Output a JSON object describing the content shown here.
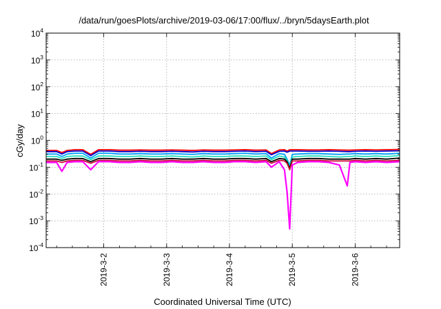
{
  "chart_data": {
    "type": "line",
    "title": "/data/run/goesPlots/archive/2019-03-06/17:00/flux/../bryn/5daysEarth.plot",
    "xlabel": "Coordinated Universal Time (UTC)",
    "ylabel": "cGy/day",
    "yscale": "log",
    "ylim": [
      0.0001,
      10000
    ],
    "yticks": [
      {
        "base": "10",
        "exp": "4",
        "value": 10000
      },
      {
        "base": "10",
        "exp": "3",
        "value": 1000
      },
      {
        "base": "10",
        "exp": "2",
        "value": 100
      },
      {
        "base": "10",
        "exp": "1",
        "value": 10
      },
      {
        "base": "10",
        "exp": "0",
        "value": 1
      },
      {
        "base": "10",
        "exp": "-1",
        "value": 0.1
      },
      {
        "base": "10",
        "exp": "-2",
        "value": 0.01
      },
      {
        "base": "10",
        "exp": "-3",
        "value": 0.001
      },
      {
        "base": "10",
        "exp": "-4",
        "value": 0.0001
      }
    ],
    "xlim": [
      "2019-03-01T02:00",
      "2019-03-06T17:00"
    ],
    "xticks": [
      "2019-3-2",
      "2019-3-3",
      "2019-3-4",
      "2019-3-5",
      "2019-3-6"
    ],
    "grid": true,
    "x": [
      "2019-03-01T02:00",
      "2019-03-01T06:00",
      "2019-03-01T08:00",
      "2019-03-01T10:00",
      "2019-03-01T13:00",
      "2019-03-01T16:00",
      "2019-03-01T19:00",
      "2019-03-01T22:00",
      "2019-03-02T02:00",
      "2019-03-02T06:00",
      "2019-03-02T10:00",
      "2019-03-02T14:00",
      "2019-03-02T18:00",
      "2019-03-02T22:00",
      "2019-03-03T02:00",
      "2019-03-03T06:00",
      "2019-03-03T10:00",
      "2019-03-03T14:00",
      "2019-03-03T18:00",
      "2019-03-03T22:00",
      "2019-03-04T02:00",
      "2019-03-04T06:00",
      "2019-03-04T10:00",
      "2019-03-04T14:00",
      "2019-03-04T16:00",
      "2019-03-04T19:00",
      "2019-03-04T21:00",
      "2019-03-04T22:00",
      "2019-03-04T23:00",
      "2019-03-05T00:00",
      "2019-03-05T02:00",
      "2019-03-05T06:00",
      "2019-03-05T10:00",
      "2019-03-05T14:00",
      "2019-03-05T18:00",
      "2019-03-05T21:00",
      "2019-03-05T22:00",
      "2019-03-06T00:00",
      "2019-03-06T04:00",
      "2019-03-06T08:00",
      "2019-03-06T12:00",
      "2019-03-06T17:00"
    ],
    "series": [
      {
        "color": "#ff0000",
        "values": [
          0.42,
          0.42,
          0.35,
          0.42,
          0.45,
          0.45,
          0.3,
          0.45,
          0.45,
          0.43,
          0.43,
          0.44,
          0.43,
          0.43,
          0.44,
          0.43,
          0.42,
          0.44,
          0.43,
          0.43,
          0.44,
          0.45,
          0.43,
          0.44,
          0.32,
          0.44,
          0.45,
          0.4,
          0.45,
          0.45,
          0.45,
          0.44,
          0.44,
          0.45,
          0.44,
          0.43,
          0.43,
          0.44,
          0.45,
          0.44,
          0.45,
          0.46
        ]
      },
      {
        "color": "#0000cc",
        "values": [
          0.38,
          0.38,
          0.31,
          0.38,
          0.4,
          0.4,
          0.27,
          0.4,
          0.4,
          0.38,
          0.38,
          0.39,
          0.38,
          0.38,
          0.39,
          0.38,
          0.37,
          0.39,
          0.38,
          0.38,
          0.39,
          0.4,
          0.38,
          0.39,
          0.29,
          0.39,
          0.4,
          0.36,
          0.4,
          0.4,
          0.4,
          0.39,
          0.39,
          0.4,
          0.39,
          0.38,
          0.38,
          0.39,
          0.4,
          0.39,
          0.4,
          0.41
        ]
      },
      {
        "color": "#00a0ff",
        "values": [
          0.31,
          0.31,
          0.25,
          0.31,
          0.33,
          0.33,
          0.22,
          0.33,
          0.33,
          0.31,
          0.31,
          0.32,
          0.31,
          0.31,
          0.32,
          0.31,
          0.3,
          0.32,
          0.31,
          0.31,
          0.32,
          0.33,
          0.31,
          0.32,
          0.22,
          0.32,
          0.3,
          0.2,
          0.12,
          0.3,
          0.31,
          0.32,
          0.32,
          0.31,
          0.3,
          0.31,
          0.31,
          0.32,
          0.31,
          0.32,
          0.31,
          0.33
        ]
      },
      {
        "color": "#22ddbb",
        "values": [
          0.25,
          0.25,
          0.21,
          0.25,
          0.26,
          0.26,
          0.19,
          0.26,
          0.26,
          0.25,
          0.25,
          0.26,
          0.25,
          0.25,
          0.26,
          0.25,
          0.24,
          0.26,
          0.25,
          0.25,
          0.26,
          0.26,
          0.25,
          0.26,
          0.19,
          0.26,
          0.24,
          0.18,
          0.1,
          0.24,
          0.25,
          0.26,
          0.26,
          0.25,
          0.24,
          0.25,
          0.25,
          0.26,
          0.25,
          0.26,
          0.25,
          0.27
        ]
      },
      {
        "color": "#000000",
        "values": [
          0.2,
          0.2,
          0.18,
          0.2,
          0.21,
          0.21,
          0.16,
          0.21,
          0.21,
          0.2,
          0.2,
          0.21,
          0.2,
          0.2,
          0.21,
          0.2,
          0.2,
          0.21,
          0.2,
          0.2,
          0.21,
          0.21,
          0.2,
          0.21,
          0.16,
          0.21,
          0.2,
          0.16,
          0.09,
          0.2,
          0.2,
          0.21,
          0.21,
          0.2,
          0.2,
          0.2,
          0.2,
          0.21,
          0.2,
          0.21,
          0.2,
          0.22
        ]
      },
      {
        "color": "#cc0033",
        "values": [
          0.17,
          0.17,
          0.15,
          0.17,
          0.18,
          0.18,
          0.14,
          0.18,
          0.18,
          0.17,
          0.17,
          0.18,
          0.17,
          0.17,
          0.18,
          0.17,
          0.17,
          0.18,
          0.17,
          0.17,
          0.18,
          0.18,
          0.17,
          0.18,
          0.14,
          0.18,
          0.17,
          0.14,
          0.08,
          0.17,
          0.17,
          0.18,
          0.18,
          0.17,
          0.17,
          0.17,
          0.17,
          0.18,
          0.17,
          0.18,
          0.17,
          0.18
        ]
      },
      {
        "color": "#ff00ff",
        "values": [
          0.15,
          0.15,
          0.07,
          0.15,
          0.16,
          0.16,
          0.08,
          0.16,
          0.16,
          0.15,
          0.15,
          0.16,
          0.15,
          0.15,
          0.16,
          0.15,
          0.15,
          0.16,
          0.15,
          0.15,
          0.16,
          0.16,
          0.15,
          0.16,
          0.1,
          0.16,
          0.08,
          0.012,
          0.0005,
          0.12,
          0.15,
          0.16,
          0.16,
          0.15,
          0.12,
          0.02,
          0.15,
          0.16,
          0.15,
          0.16,
          0.15,
          0.16
        ]
      }
    ]
  }
}
